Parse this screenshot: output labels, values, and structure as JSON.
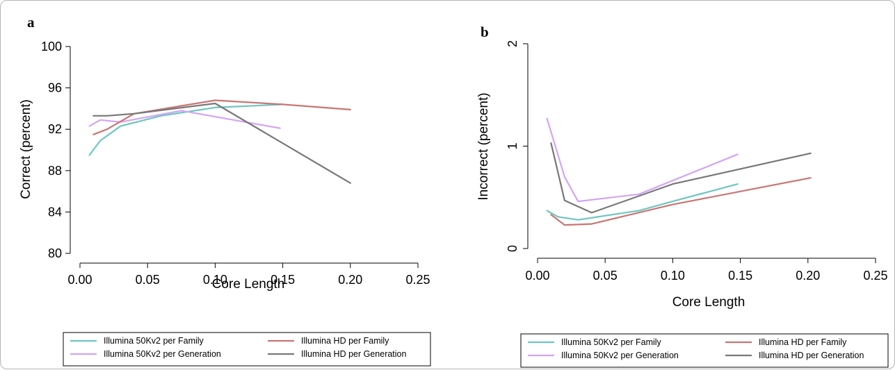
{
  "colors": {
    "illumina_50kv2_family": "#6cc6c0",
    "illumina_hd_family": "#c97573",
    "illumina_50kv2_generation": "#d3a4f5",
    "illumina_hd_generation": "#777777"
  },
  "chart_data": [
    {
      "panel": "a",
      "type": "line",
      "xlabel": "Core Length",
      "ylabel": "Correct (percent)",
      "xlim": [
        0,
        0.25
      ],
      "ylim": [
        80,
        100
      ],
      "xticks": [
        "0.00",
        "0.05",
        "0.10",
        "0.15",
        "0.20",
        "0.25"
      ],
      "yticks": [
        "80",
        "84",
        "88",
        "92",
        "96",
        "100"
      ],
      "xtick_values": [
        0,
        0.05,
        0.1,
        0.15,
        0.2,
        0.25
      ],
      "ytick_values": [
        80,
        84,
        88,
        92,
        96,
        100
      ],
      "grid": false,
      "legend_position": "bottom",
      "series": [
        {
          "name": "Illumina 50Kv2 per Family",
          "color_key": "illumina_50kv2_family",
          "x": [
            0.007,
            0.015,
            0.03,
            0.06,
            0.1,
            0.15
          ],
          "y": [
            89.5,
            90.9,
            92.3,
            93.3,
            94.1,
            94.4
          ]
        },
        {
          "name": "Illumina 50Kv2 per Generation",
          "color_key": "illumina_50kv2_generation",
          "x": [
            0.007,
            0.015,
            0.03,
            0.075,
            0.148
          ],
          "y": [
            92.3,
            92.9,
            92.7,
            93.8,
            92.1
          ]
        },
        {
          "name": "Illumina HD per Family",
          "color_key": "illumina_hd_family",
          "x": [
            0.01,
            0.02,
            0.04,
            0.1,
            0.15,
            0.2
          ],
          "y": [
            91.5,
            92.0,
            93.5,
            94.8,
            94.4,
            93.9
          ]
        },
        {
          "name": "Illumina HD per Generation",
          "color_key": "illumina_hd_generation",
          "x": [
            0.01,
            0.02,
            0.04,
            0.1,
            0.2
          ],
          "y": [
            93.3,
            93.3,
            93.5,
            94.5,
            86.8
          ]
        }
      ]
    },
    {
      "panel": "b",
      "type": "line",
      "xlabel": "Core Length",
      "ylabel": "Incorrect (percent)",
      "xlim": [
        0,
        0.25
      ],
      "ylim": [
        0,
        2
      ],
      "xticks": [
        "0.00",
        "0.05",
        "0.10",
        "0.15",
        "0.20",
        "0.25"
      ],
      "yticks": [
        "0",
        "1",
        "2"
      ],
      "xtick_values": [
        0,
        0.05,
        0.1,
        0.15,
        0.2,
        0.25
      ],
      "ytick_values": [
        0,
        1,
        2
      ],
      "grid": false,
      "legend_position": "bottom",
      "series": [
        {
          "name": "Illumina 50Kv2 per Family",
          "color_key": "illumina_50kv2_family",
          "x": [
            0.007,
            0.015,
            0.03,
            0.075,
            0.1,
            0.148
          ],
          "y": [
            0.37,
            0.31,
            0.28,
            0.37,
            0.46,
            0.63
          ]
        },
        {
          "name": "Illumina 50Kv2 per Generation",
          "color_key": "illumina_50kv2_generation",
          "x": [
            0.007,
            0.02,
            0.03,
            0.075,
            0.148
          ],
          "y": [
            1.27,
            0.7,
            0.46,
            0.53,
            0.92
          ]
        },
        {
          "name": "Illumina HD per Family",
          "color_key": "illumina_hd_family",
          "x": [
            0.01,
            0.02,
            0.04,
            0.1,
            0.202
          ],
          "y": [
            0.33,
            0.23,
            0.24,
            0.43,
            0.69
          ]
        },
        {
          "name": "Illumina HD per Generation",
          "color_key": "illumina_hd_generation",
          "x": [
            0.01,
            0.02,
            0.04,
            0.1,
            0.202
          ],
          "y": [
            1.03,
            0.47,
            0.35,
            0.63,
            0.93
          ]
        }
      ]
    }
  ]
}
